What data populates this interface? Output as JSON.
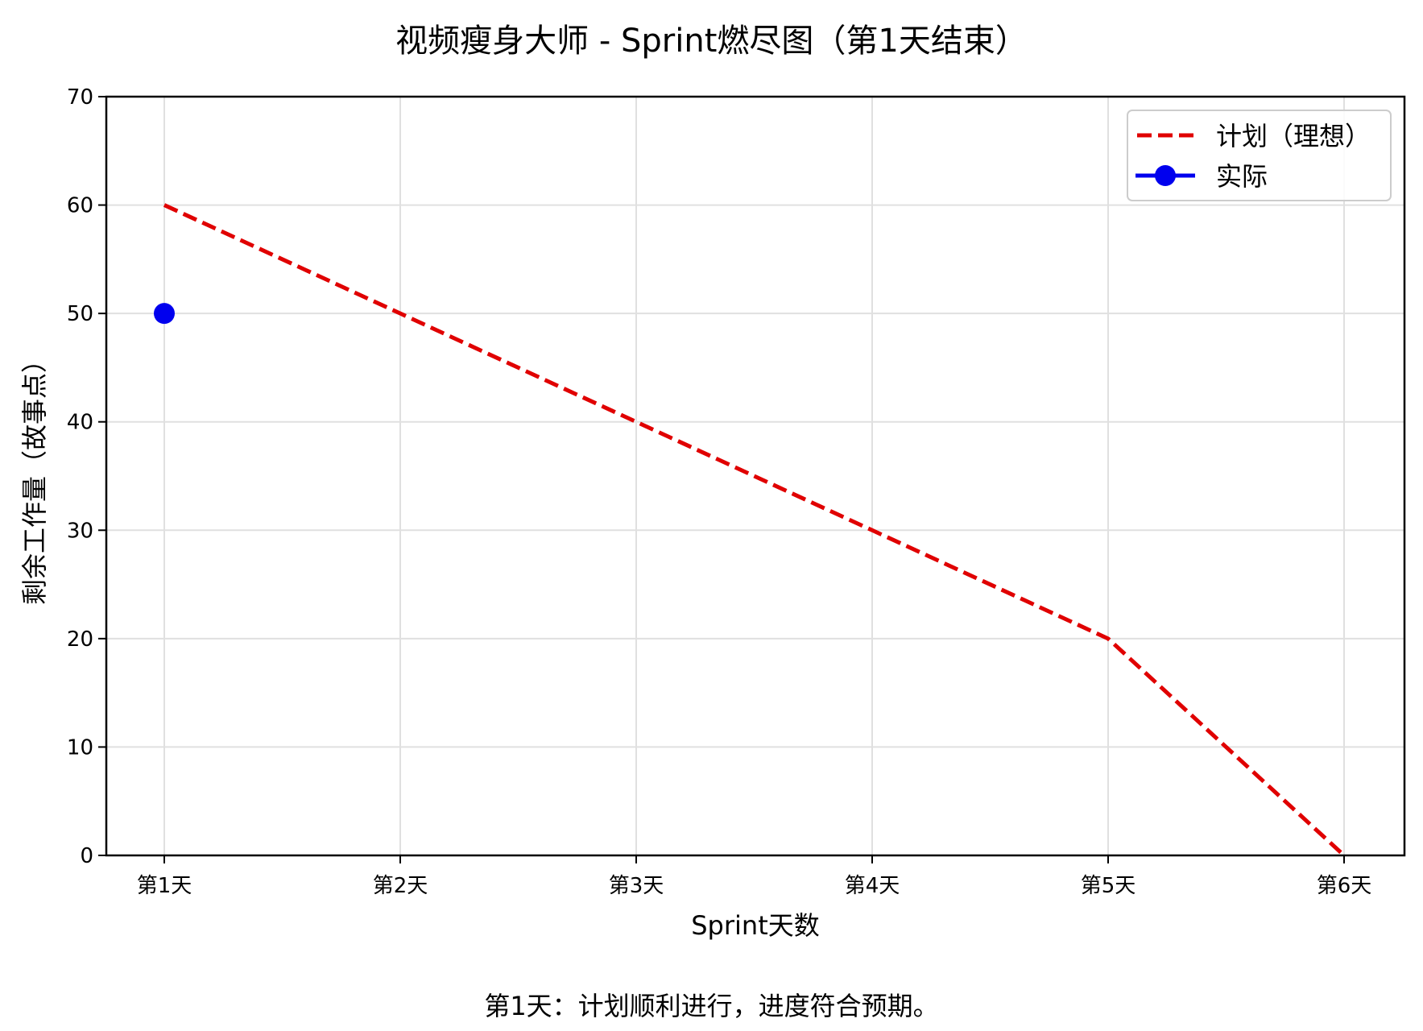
{
  "title": "视频瘦身大师 - Sprint燃尽图（第1天结束）",
  "footnote": "第1天：计划顺利进行，进度符合预期。",
  "colors": {
    "plan": "#e00000",
    "actual": "#0000ee",
    "grid": "#e0e0e0",
    "axis": "#000000"
  },
  "chart_data": {
    "type": "line",
    "title": "视频瘦身大师 - Sprint燃尽图（第1天结束）",
    "xlabel": "Sprint天数",
    "ylabel": "剩余工作量（故事点）",
    "categories": [
      "第1天",
      "第2天",
      "第3天",
      "第4天",
      "第5天",
      "第6天"
    ],
    "ylim": [
      0,
      70
    ],
    "yticks": [
      0,
      10,
      20,
      30,
      40,
      50,
      60,
      70
    ],
    "grid": true,
    "legend_position": "upper right",
    "series": [
      {
        "name": "计划（理想）",
        "style": "dashed",
        "color": "#e00000",
        "values": [
          60,
          50,
          40,
          30,
          20,
          0
        ]
      },
      {
        "name": "实际",
        "style": "solid-with-markers",
        "color": "#0000ee",
        "values": [
          50,
          null,
          null,
          null,
          null,
          null
        ]
      }
    ],
    "annotation": "第1天：计划顺利进行，进度符合预期。"
  }
}
